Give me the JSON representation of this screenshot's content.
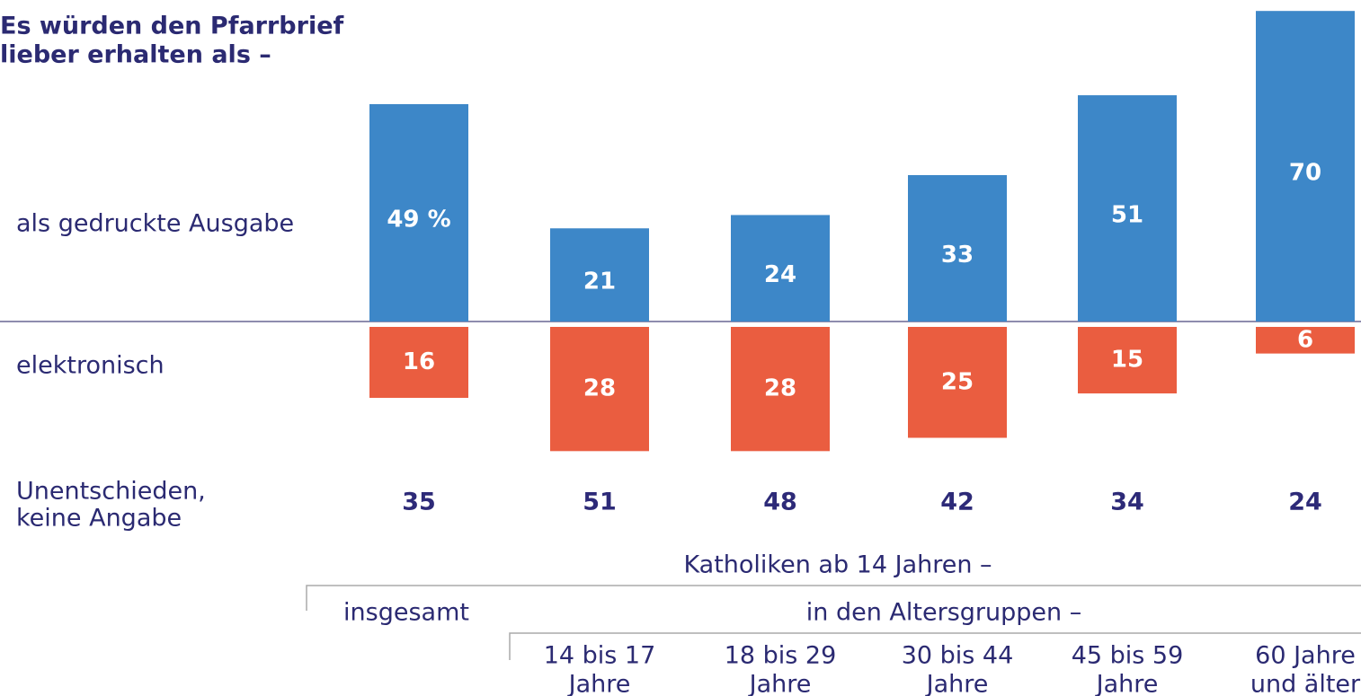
{
  "chart_data": {
    "type": "diverging_bar",
    "title": [
      "Es würden den Pfarrbrief",
      "lieber erhalten als –"
    ],
    "categories": [
      [
        "insgesamt"
      ],
      [
        "14 bis 17",
        "Jahre"
      ],
      [
        "18 bis 29",
        "Jahre"
      ],
      [
        "30 bis 44",
        "Jahre"
      ],
      [
        "45 bis 59",
        "Jahre"
      ],
      [
        "60 Jahre",
        "und älter"
      ]
    ],
    "header": "Katholiken ab 14 Jahren –",
    "group_label": "in den Altersgruppen –",
    "series": [
      {
        "name": [
          "als gedruckte Ausgabe"
        ],
        "color": "#3d87c8",
        "direction": "up",
        "values": [
          49,
          21,
          24,
          33,
          51,
          70
        ],
        "value_labels": [
          "49 %",
          "21",
          "24",
          "33",
          "51",
          "70"
        ]
      },
      {
        "name": [
          "elektronisch"
        ],
        "color": "#ea5d40",
        "direction": "down",
        "values": [
          16,
          28,
          28,
          25,
          15,
          6
        ]
      },
      {
        "name": [
          "Unentschieden,",
          "keine Angabe"
        ],
        "color": "#2d2a78",
        "direction": "text",
        "values": [
          35,
          51,
          48,
          42,
          34,
          24
        ]
      }
    ]
  }
}
